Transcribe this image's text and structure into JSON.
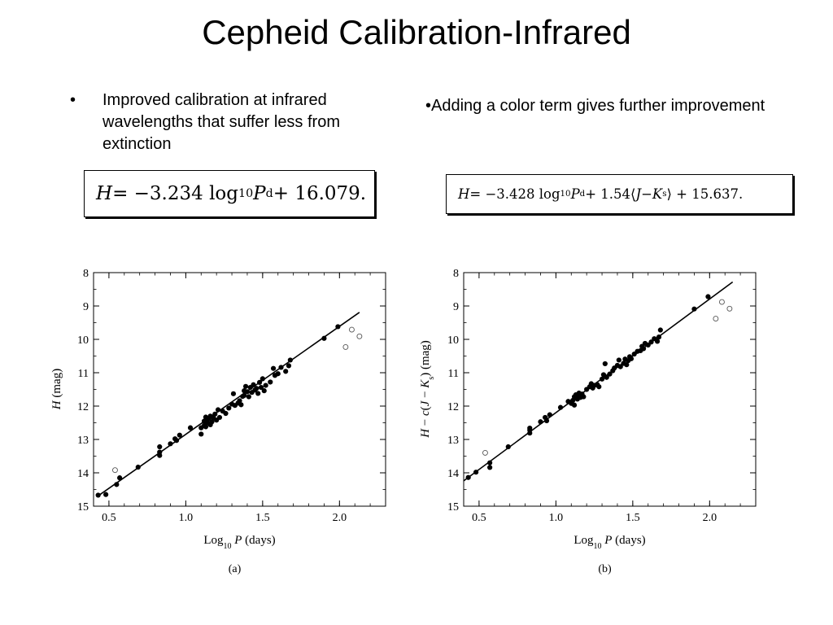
{
  "title": "Cepheid Calibration-Infrared",
  "bullets": {
    "left": {
      "marker": "•",
      "text": "Improved calibration at infrared wavelengths that suffer less from extinction"
    },
    "right": {
      "text": "•Adding a color term gives further improvement"
    }
  },
  "equations": {
    "left": {
      "lhs": "H",
      "part1": " = −3.234 log",
      "sub10": "10",
      "p": " P",
      "subd": "d",
      "rest": " + 16.079."
    },
    "right": {
      "lhs": "H",
      "part1": " = −3.428 log",
      "sub10": "10",
      "p": " P",
      "subd": "d",
      "mid": " + 1.54⟨",
      "j": "J",
      "minus": " − ",
      "k": "K",
      "subs": "s",
      "rest": "⟩ + 15.637."
    }
  },
  "chart_data": [
    {
      "type": "scatter",
      "panel_label": "(a)",
      "xlabel": "Log10 P (days)",
      "ylabel": "H (mag)",
      "xlim": [
        0.4,
        2.3
      ],
      "ylim": [
        15,
        8
      ],
      "y_inverted": true,
      "x_ticks": [
        0.5,
        1.0,
        1.5,
        2.0
      ],
      "x_tick_labels": [
        "0.5",
        "1.0",
        "1.5",
        "2.0"
      ],
      "y_ticks": [
        8,
        9,
        10,
        11,
        12,
        13,
        14,
        15
      ],
      "y_tick_labels": [
        "8",
        "9",
        "10",
        "11",
        "12",
        "13",
        "14",
        "15"
      ],
      "fit_line": {
        "x": [
          0.43,
          2.13
        ],
        "y": [
          14.69,
          9.19
        ]
      },
      "filled_points": [
        [
          0.43,
          14.67
        ],
        [
          0.48,
          14.65
        ],
        [
          0.55,
          14.35
        ],
        [
          0.57,
          14.15
        ],
        [
          0.69,
          13.83
        ],
        [
          0.83,
          13.48
        ],
        [
          0.83,
          13.38
        ],
        [
          0.83,
          13.22
        ],
        [
          0.9,
          13.13
        ],
        [
          0.93,
          12.98
        ],
        [
          0.94,
          13.03
        ],
        [
          0.96,
          12.87
        ],
        [
          1.03,
          12.65
        ],
        [
          1.1,
          12.84
        ],
        [
          1.1,
          12.65
        ],
        [
          1.12,
          12.58
        ],
        [
          1.12,
          12.45
        ],
        [
          1.13,
          12.33
        ],
        [
          1.13,
          12.62
        ],
        [
          1.14,
          12.5
        ],
        [
          1.15,
          12.38
        ],
        [
          1.16,
          12.56
        ],
        [
          1.16,
          12.3
        ],
        [
          1.17,
          12.47
        ],
        [
          1.18,
          12.35
        ],
        [
          1.19,
          12.24
        ],
        [
          1.2,
          12.42
        ],
        [
          1.21,
          12.11
        ],
        [
          1.22,
          12.34
        ],
        [
          1.24,
          12.15
        ],
        [
          1.26,
          12.22
        ],
        [
          1.28,
          12.06
        ],
        [
          1.3,
          11.94
        ],
        [
          1.31,
          11.63
        ],
        [
          1.32,
          11.98
        ],
        [
          1.34,
          11.91
        ],
        [
          1.35,
          11.84
        ],
        [
          1.36,
          11.96
        ],
        [
          1.37,
          11.71
        ],
        [
          1.38,
          11.54
        ],
        [
          1.38,
          11.68
        ],
        [
          1.39,
          11.41
        ],
        [
          1.4,
          11.57
        ],
        [
          1.41,
          11.72
        ],
        [
          1.42,
          11.44
        ],
        [
          1.43,
          11.59
        ],
        [
          1.44,
          11.36
        ],
        [
          1.45,
          11.52
        ],
        [
          1.46,
          11.47
        ],
        [
          1.47,
          11.62
        ],
        [
          1.48,
          11.29
        ],
        [
          1.49,
          11.44
        ],
        [
          1.5,
          11.18
        ],
        [
          1.51,
          11.54
        ],
        [
          1.52,
          11.38
        ],
        [
          1.55,
          11.28
        ],
        [
          1.57,
          10.87
        ],
        [
          1.58,
          11.08
        ],
        [
          1.6,
          11.03
        ],
        [
          1.62,
          10.84
        ],
        [
          1.65,
          10.96
        ],
        [
          1.67,
          10.79
        ],
        [
          1.68,
          10.62
        ],
        [
          1.9,
          9.97
        ],
        [
          1.99,
          9.62
        ]
      ],
      "open_points": [
        [
          0.54,
          13.92
        ],
        [
          2.04,
          10.23
        ],
        [
          2.08,
          9.71
        ],
        [
          2.13,
          9.91
        ]
      ]
    },
    {
      "type": "scatter",
      "panel_label": "(b)",
      "xlabel": "Log10 P (days)",
      "ylabel": "H − c(J − Ks) (mag)",
      "xlim": [
        0.4,
        2.3
      ],
      "ylim": [
        15,
        8
      ],
      "y_inverted": true,
      "x_ticks": [
        0.5,
        1.0,
        1.5,
        2.0
      ],
      "x_tick_labels": [
        "0.5",
        "1.0",
        "1.5",
        "2.0"
      ],
      "y_ticks": [
        8,
        9,
        10,
        11,
        12,
        13,
        14,
        15
      ],
      "y_tick_labels": [
        "8",
        "9",
        "10",
        "11",
        "12",
        "13",
        "14",
        "15"
      ],
      "fit_line": {
        "x": [
          0.4,
          2.15
        ],
        "y": [
          14.24,
          8.28
        ]
      },
      "filled_points": [
        [
          0.43,
          14.14
        ],
        [
          0.48,
          13.98
        ],
        [
          0.57,
          13.84
        ],
        [
          0.57,
          13.7
        ],
        [
          0.69,
          13.22
        ],
        [
          0.83,
          12.81
        ],
        [
          0.83,
          12.66
        ],
        [
          0.83,
          12.72
        ],
        [
          0.9,
          12.47
        ],
        [
          0.93,
          12.34
        ],
        [
          0.94,
          12.44
        ],
        [
          0.96,
          12.26
        ],
        [
          1.03,
          12.04
        ],
        [
          1.08,
          11.86
        ],
        [
          1.1,
          11.92
        ],
        [
          1.11,
          11.83
        ],
        [
          1.12,
          11.72
        ],
        [
          1.12,
          11.97
        ],
        [
          1.13,
          11.66
        ],
        [
          1.14,
          11.79
        ],
        [
          1.15,
          11.61
        ],
        [
          1.16,
          11.74
        ],
        [
          1.17,
          11.64
        ],
        [
          1.18,
          11.72
        ],
        [
          1.2,
          11.5
        ],
        [
          1.22,
          11.42
        ],
        [
          1.23,
          11.33
        ],
        [
          1.24,
          11.46
        ],
        [
          1.25,
          11.38
        ],
        [
          1.27,
          11.36
        ],
        [
          1.28,
          11.42
        ],
        [
          1.3,
          11.19
        ],
        [
          1.31,
          11.06
        ],
        [
          1.32,
          10.73
        ],
        [
          1.33,
          11.14
        ],
        [
          1.35,
          11.04
        ],
        [
          1.37,
          10.94
        ],
        [
          1.38,
          10.86
        ],
        [
          1.4,
          10.78
        ],
        [
          1.41,
          10.62
        ],
        [
          1.42,
          10.82
        ],
        [
          1.44,
          10.72
        ],
        [
          1.45,
          10.59
        ],
        [
          1.46,
          10.76
        ],
        [
          1.47,
          10.64
        ],
        [
          1.48,
          10.52
        ],
        [
          1.49,
          10.58
        ],
        [
          1.51,
          10.44
        ],
        [
          1.53,
          10.36
        ],
        [
          1.55,
          10.34
        ],
        [
          1.56,
          10.21
        ],
        [
          1.57,
          10.28
        ],
        [
          1.58,
          10.12
        ],
        [
          1.6,
          10.17
        ],
        [
          1.62,
          10.08
        ],
        [
          1.64,
          9.98
        ],
        [
          1.66,
          10.06
        ],
        [
          1.67,
          9.93
        ],
        [
          1.68,
          9.72
        ],
        [
          1.9,
          9.09
        ],
        [
          1.99,
          8.72
        ]
      ],
      "open_points": [
        [
          0.54,
          13.4
        ],
        [
          2.04,
          9.38
        ],
        [
          2.08,
          8.88
        ],
        [
          2.13,
          9.08
        ]
      ]
    }
  ]
}
